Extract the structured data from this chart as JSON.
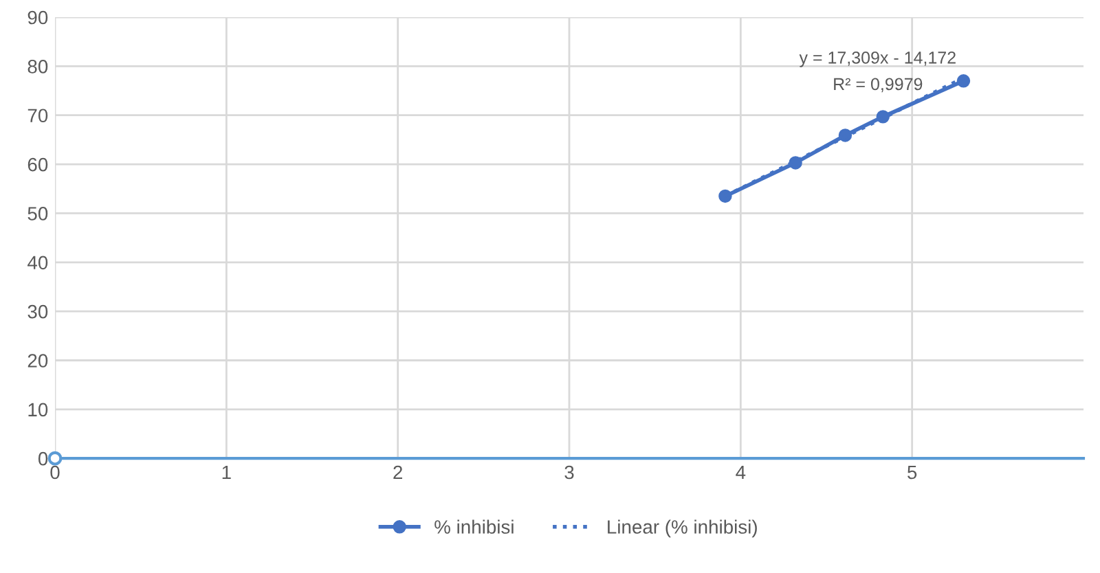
{
  "chart_data": {
    "type": "line",
    "xlim": [
      0,
      6
    ],
    "xticks": [
      0,
      1,
      2,
      3,
      4,
      5
    ],
    "ylim": [
      0,
      90
    ],
    "yticks": [
      0,
      10,
      20,
      30,
      40,
      50,
      60,
      70,
      80,
      90
    ],
    "grid": true,
    "legend": "bottom",
    "series": [
      {
        "name": "% inhibisi",
        "color": "#4472c4",
        "marker": "circle",
        "line_style": "solid",
        "x": [
          3.91,
          4.32,
          4.61,
          4.83,
          5.3
        ],
        "values": [
          53.5,
          60.3,
          65.9,
          69.7,
          77.0
        ]
      },
      {
        "name": "Linear (% inhibisi)",
        "color": "#4472c4",
        "marker": "none",
        "line_style": "dotted",
        "x": [
          3.91,
          5.3
        ],
        "values": [
          53.5,
          77.6
        ]
      },
      {
        "type": "scatter",
        "color": "#5b9bd5",
        "marker": "circle",
        "x": [
          0
        ],
        "values": [
          0
        ]
      }
    ],
    "annotations": [
      "y = 17,309x - 14,172",
      "R² = 0,9979"
    ]
  }
}
